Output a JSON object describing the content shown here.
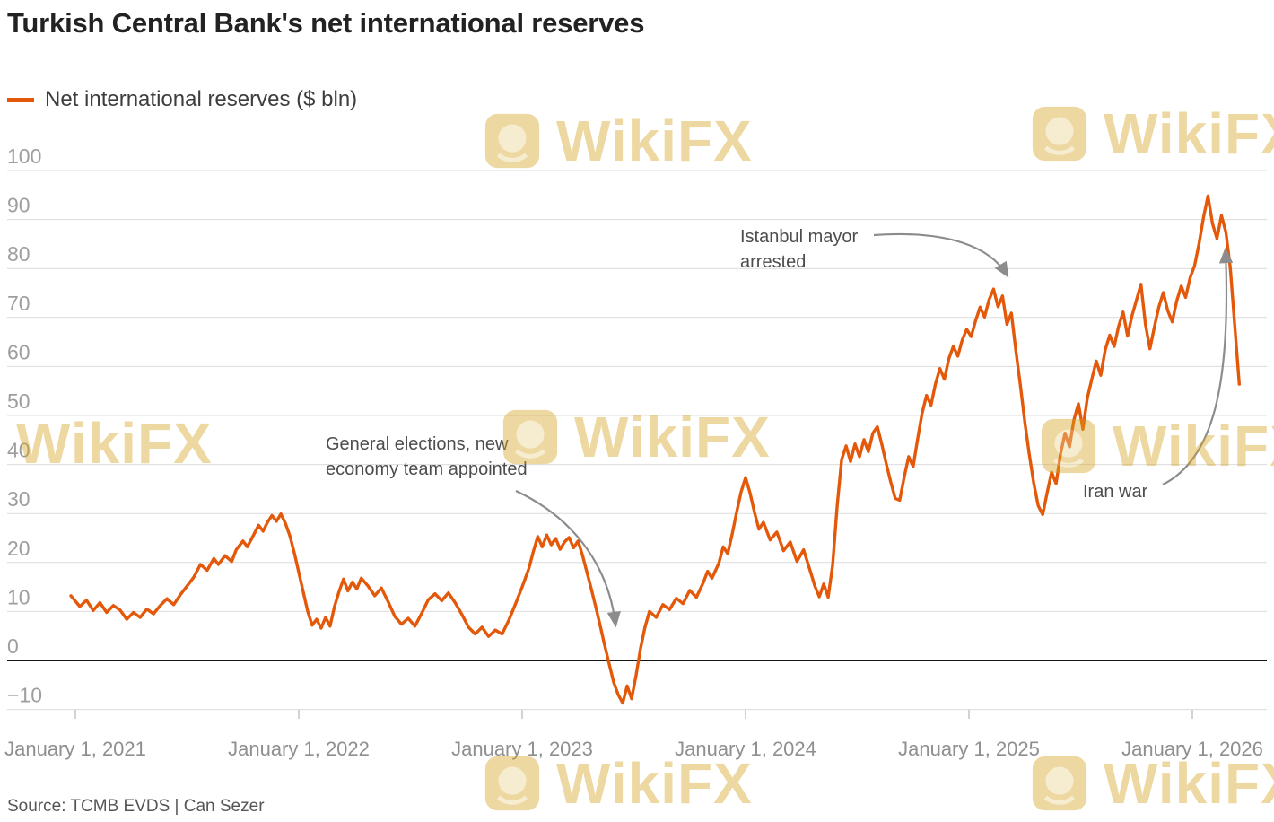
{
  "title": "Turkish Central Bank's net international reserves",
  "legend": {
    "label": "Net international reserves ($ bln)",
    "color": "#e4580a"
  },
  "source": "Source: TCMB EVDS | Can Sezer",
  "watermark": {
    "label": "WikiFX"
  },
  "annotations": {
    "elections": {
      "line1": "General elections, new",
      "line2": "economy team appointed"
    },
    "istanbul": {
      "line1": "Istanbul mayor",
      "line2": "arrested"
    },
    "iran": {
      "label": "Iran war"
    }
  },
  "chart_data": {
    "type": "line",
    "title": "Turkish Central Bank's net international reserves",
    "xlabel": "",
    "ylabel": "Net international reserves ($ bln)",
    "grid": "horizontal",
    "legend_position": "top-left",
    "x_axis": {
      "ticks": [
        {
          "value": 2021,
          "label": "January 1, 2021"
        },
        {
          "value": 2022,
          "label": "January 1, 2022"
        },
        {
          "value": 2023,
          "label": "January 1, 2023"
        },
        {
          "value": 2024,
          "label": "January 1, 2024"
        },
        {
          "value": 2025,
          "label": "January 1, 2025"
        },
        {
          "value": 2026,
          "label": "January 1, 2026"
        }
      ]
    },
    "y_axis": {
      "range": [
        -11,
        105
      ],
      "ticks": [
        {
          "value": 100,
          "label": "100"
        },
        {
          "value": 90,
          "label": "90"
        },
        {
          "value": 80,
          "label": "80"
        },
        {
          "value": 70,
          "label": "70"
        },
        {
          "value": 60,
          "label": "60"
        },
        {
          "value": 50,
          "label": "50"
        },
        {
          "value": 40,
          "label": "40"
        },
        {
          "value": 30,
          "label": "30"
        },
        {
          "value": 20,
          "label": "20"
        },
        {
          "value": 10,
          "label": "10"
        },
        {
          "value": 0,
          "label": "0"
        },
        {
          "value": -10,
          "label": "−10"
        }
      ]
    },
    "annotations": [
      {
        "text": "General elections, new economy team appointed",
        "target_x": 2023.45,
        "target_y": -6
      },
      {
        "text": "Istanbul mayor arrested",
        "target_x": 2025.13,
        "target_y": 75.8
      },
      {
        "text": "Iran war",
        "target_x": 2026.15,
        "target_y": 87
      }
    ],
    "series": [
      {
        "name": "Net international reserves ($ bln)",
        "color": "#e4580a",
        "points": [
          [
            2020.98,
            13.2
          ],
          [
            2021.02,
            11.0
          ],
          [
            2021.05,
            12.3
          ],
          [
            2021.08,
            10.2
          ],
          [
            2021.11,
            11.8
          ],
          [
            2021.14,
            9.8
          ],
          [
            2021.17,
            11.2
          ],
          [
            2021.2,
            10.3
          ],
          [
            2021.23,
            8.4
          ],
          [
            2021.26,
            9.8
          ],
          [
            2021.29,
            8.8
          ],
          [
            2021.32,
            10.5
          ],
          [
            2021.35,
            9.5
          ],
          [
            2021.38,
            11.2
          ],
          [
            2021.41,
            12.6
          ],
          [
            2021.44,
            11.4
          ],
          [
            2021.47,
            13.4
          ],
          [
            2021.5,
            15.2
          ],
          [
            2021.53,
            17.0
          ],
          [
            2021.56,
            19.6
          ],
          [
            2021.59,
            18.4
          ],
          [
            2021.62,
            20.8
          ],
          [
            2021.64,
            19.6
          ],
          [
            2021.67,
            21.4
          ],
          [
            2021.7,
            20.2
          ],
          [
            2021.72,
            22.6
          ],
          [
            2021.75,
            24.4
          ],
          [
            2021.77,
            23.2
          ],
          [
            2021.8,
            25.8
          ],
          [
            2021.82,
            27.6
          ],
          [
            2021.84,
            26.4
          ],
          [
            2021.86,
            28.2
          ],
          [
            2021.88,
            29.6
          ],
          [
            2021.9,
            28.4
          ],
          [
            2021.92,
            29.9
          ],
          [
            2021.94,
            28.0
          ],
          [
            2021.96,
            25.5
          ],
          [
            2021.98,
            22.0
          ],
          [
            2022.0,
            18.0
          ],
          [
            2022.02,
            14.0
          ],
          [
            2022.04,
            10.0
          ],
          [
            2022.06,
            7.2
          ],
          [
            2022.08,
            8.4
          ],
          [
            2022.1,
            6.6
          ],
          [
            2022.12,
            8.8
          ],
          [
            2022.14,
            7.0
          ],
          [
            2022.16,
            11.0
          ],
          [
            2022.18,
            14.0
          ],
          [
            2022.2,
            16.6
          ],
          [
            2022.22,
            14.2
          ],
          [
            2022.24,
            16.0
          ],
          [
            2022.26,
            14.6
          ],
          [
            2022.28,
            16.8
          ],
          [
            2022.31,
            15.2
          ],
          [
            2022.34,
            13.2
          ],
          [
            2022.37,
            14.8
          ],
          [
            2022.4,
            12.0
          ],
          [
            2022.43,
            9.0
          ],
          [
            2022.46,
            7.4
          ],
          [
            2022.49,
            8.6
          ],
          [
            2022.52,
            7.0
          ],
          [
            2022.55,
            9.6
          ],
          [
            2022.58,
            12.4
          ],
          [
            2022.61,
            13.6
          ],
          [
            2022.64,
            12.2
          ],
          [
            2022.67,
            13.8
          ],
          [
            2022.7,
            11.8
          ],
          [
            2022.73,
            9.4
          ],
          [
            2022.76,
            6.8
          ],
          [
            2022.79,
            5.4
          ],
          [
            2022.82,
            6.8
          ],
          [
            2022.85,
            4.9
          ],
          [
            2022.88,
            6.2
          ],
          [
            2022.91,
            5.4
          ],
          [
            2022.94,
            8.2
          ],
          [
            2022.97,
            11.5
          ],
          [
            2023.0,
            15.0
          ],
          [
            2023.03,
            18.8
          ],
          [
            2023.05,
            22.2
          ],
          [
            2023.07,
            25.3
          ],
          [
            2023.09,
            23.2
          ],
          [
            2023.11,
            25.6
          ],
          [
            2023.13,
            23.6
          ],
          [
            2023.15,
            24.9
          ],
          [
            2023.17,
            22.7
          ],
          [
            2023.19,
            24.2
          ],
          [
            2023.21,
            25.1
          ],
          [
            2023.23,
            23.0
          ],
          [
            2023.25,
            24.4
          ],
          [
            2023.27,
            21.5
          ],
          [
            2023.29,
            18.0
          ],
          [
            2023.31,
            14.5
          ],
          [
            2023.33,
            10.8
          ],
          [
            2023.35,
            7.0
          ],
          [
            2023.37,
            3.0
          ],
          [
            2023.39,
            -0.8
          ],
          [
            2023.41,
            -4.5
          ],
          [
            2023.43,
            -7.0
          ],
          [
            2023.45,
            -8.7
          ],
          [
            2023.47,
            -5.2
          ],
          [
            2023.49,
            -7.8
          ],
          [
            2023.51,
            -3.0
          ],
          [
            2023.53,
            2.5
          ],
          [
            2023.55,
            6.8
          ],
          [
            2023.57,
            10.0
          ],
          [
            2023.6,
            8.8
          ],
          [
            2023.63,
            11.4
          ],
          [
            2023.66,
            10.4
          ],
          [
            2023.69,
            12.7
          ],
          [
            2023.72,
            11.6
          ],
          [
            2023.75,
            14.3
          ],
          [
            2023.78,
            12.9
          ],
          [
            2023.81,
            15.8
          ],
          [
            2023.83,
            18.2
          ],
          [
            2023.85,
            16.8
          ],
          [
            2023.88,
            19.8
          ],
          [
            2023.9,
            23.2
          ],
          [
            2023.92,
            21.8
          ],
          [
            2023.94,
            25.8
          ],
          [
            2023.96,
            30.2
          ],
          [
            2023.98,
            34.4
          ],
          [
            2024.0,
            37.3
          ],
          [
            2024.02,
            34.2
          ],
          [
            2024.04,
            30.2
          ],
          [
            2024.06,
            26.8
          ],
          [
            2024.08,
            28.2
          ],
          [
            2024.11,
            24.6
          ],
          [
            2024.14,
            26.2
          ],
          [
            2024.17,
            22.4
          ],
          [
            2024.2,
            24.2
          ],
          [
            2024.23,
            20.2
          ],
          [
            2024.26,
            22.6
          ],
          [
            2024.29,
            18.2
          ],
          [
            2024.31,
            15.2
          ],
          [
            2024.33,
            13.0
          ],
          [
            2024.35,
            15.6
          ],
          [
            2024.37,
            12.9
          ],
          [
            2024.39,
            19.5
          ],
          [
            2024.41,
            31.5
          ],
          [
            2024.43,
            41.0
          ],
          [
            2024.45,
            43.8
          ],
          [
            2024.47,
            40.6
          ],
          [
            2024.49,
            44.2
          ],
          [
            2024.51,
            41.6
          ],
          [
            2024.53,
            45.1
          ],
          [
            2024.55,
            42.6
          ],
          [
            2024.57,
            46.4
          ],
          [
            2024.59,
            47.7
          ],
          [
            2024.61,
            44.1
          ],
          [
            2024.63,
            40.1
          ],
          [
            2024.65,
            36.4
          ],
          [
            2024.67,
            33.1
          ],
          [
            2024.69,
            32.7
          ],
          [
            2024.71,
            37.4
          ],
          [
            2024.73,
            41.6
          ],
          [
            2024.75,
            39.6
          ],
          [
            2024.77,
            45.1
          ],
          [
            2024.79,
            50.4
          ],
          [
            2024.81,
            54.1
          ],
          [
            2024.83,
            52.1
          ],
          [
            2024.85,
            56.4
          ],
          [
            2024.87,
            59.6
          ],
          [
            2024.89,
            57.4
          ],
          [
            2024.91,
            61.6
          ],
          [
            2024.93,
            64.1
          ],
          [
            2024.95,
            62.1
          ],
          [
            2024.97,
            65.4
          ],
          [
            2024.99,
            67.6
          ],
          [
            2025.01,
            66.1
          ],
          [
            2025.03,
            69.4
          ],
          [
            2025.05,
            72.1
          ],
          [
            2025.07,
            70.1
          ],
          [
            2025.09,
            73.6
          ],
          [
            2025.11,
            75.8
          ],
          [
            2025.13,
            72.2
          ],
          [
            2025.15,
            74.4
          ],
          [
            2025.17,
            68.6
          ],
          [
            2025.19,
            70.9
          ],
          [
            2025.21,
            63.2
          ],
          [
            2025.23,
            56.2
          ],
          [
            2025.25,
            48.6
          ],
          [
            2025.27,
            42.1
          ],
          [
            2025.29,
            36.2
          ],
          [
            2025.31,
            31.6
          ],
          [
            2025.33,
            29.8
          ],
          [
            2025.35,
            34.2
          ],
          [
            2025.37,
            38.4
          ],
          [
            2025.39,
            36.1
          ],
          [
            2025.41,
            42.2
          ],
          [
            2025.43,
            46.4
          ],
          [
            2025.45,
            43.6
          ],
          [
            2025.47,
            49.1
          ],
          [
            2025.49,
            52.4
          ],
          [
            2025.51,
            47.2
          ],
          [
            2025.53,
            53.6
          ],
          [
            2025.55,
            57.4
          ],
          [
            2025.57,
            61.1
          ],
          [
            2025.59,
            58.2
          ],
          [
            2025.61,
            63.4
          ],
          [
            2025.63,
            66.4
          ],
          [
            2025.65,
            64.1
          ],
          [
            2025.67,
            68.2
          ],
          [
            2025.69,
            71.1
          ],
          [
            2025.71,
            66.2
          ],
          [
            2025.73,
            70.4
          ],
          [
            2025.75,
            73.6
          ],
          [
            2025.77,
            76.8
          ],
          [
            2025.79,
            68.6
          ],
          [
            2025.81,
            63.6
          ],
          [
            2025.83,
            68.1
          ],
          [
            2025.85,
            72.1
          ],
          [
            2025.87,
            75.1
          ],
          [
            2025.89,
            71.4
          ],
          [
            2025.91,
            69.1
          ],
          [
            2025.93,
            73.4
          ],
          [
            2025.95,
            76.4
          ],
          [
            2025.97,
            74.1
          ],
          [
            2025.99,
            78.1
          ],
          [
            2026.01,
            80.6
          ],
          [
            2026.03,
            85.1
          ],
          [
            2026.05,
            90.4
          ],
          [
            2026.07,
            94.8
          ],
          [
            2026.09,
            89.2
          ],
          [
            2026.11,
            86.1
          ],
          [
            2026.13,
            90.8
          ],
          [
            2026.15,
            87.4
          ],
          [
            2026.17,
            80.1
          ],
          [
            2026.19,
            68.2
          ],
          [
            2026.21,
            56.4
          ]
        ]
      }
    ]
  }
}
